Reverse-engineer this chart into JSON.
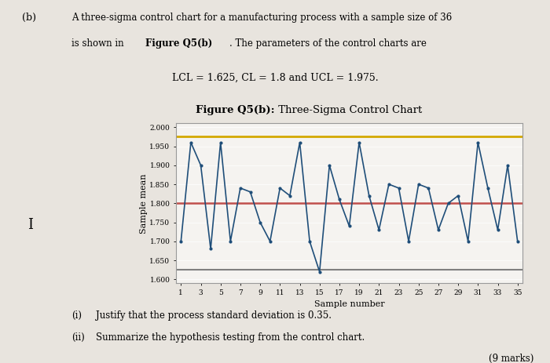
{
  "title": "Figure Q5(b): Three-Sigma Control Chart",
  "xlabel": "Sample number",
  "ylabel": "Sample mean",
  "UCL": 1.975,
  "CL": 1.8,
  "LCL": 1.625,
  "ylim_bottom": 1.59,
  "ylim_top": 2.01,
  "yticks": [
    1.6,
    1.65,
    1.7,
    1.75,
    1.8,
    1.85,
    1.9,
    1.95,
    2.0
  ],
  "xticks": [
    1,
    3,
    5,
    7,
    9,
    11,
    13,
    15,
    17,
    19,
    21,
    23,
    25,
    27,
    29,
    31,
    33,
    35
  ],
  "sample_values": [
    1.7,
    1.96,
    1.9,
    1.68,
    1.96,
    1.7,
    1.84,
    1.83,
    1.75,
    1.7,
    1.84,
    1.82,
    1.96,
    1.7,
    1.62,
    1.9,
    1.81,
    1.74,
    1.96,
    1.82,
    1.73,
    1.85,
    1.84,
    1.7,
    1.85,
    1.84,
    1.73,
    1.8,
    1.82,
    1.7,
    1.96,
    1.84,
    1.73,
    1.9,
    1.7
  ],
  "line_color": "#1f4e79",
  "UCL_color": "#d4a800",
  "LCL_color": "#808080",
  "CL_color": "#c0504d",
  "chart_bg": "#f0eeeb",
  "page_bg": "#e8e4de",
  "header_line1": "A three-sigma control chart for a manufacturing process with a sample size of 36",
  "header_line2_plain": "is shown in ",
  "header_line2_bold": "Figure Q5(b)",
  "header_line2_end": ". The parameters of the control charts are",
  "params_text": "LCL = 1.625, CL = 1.8 and UCL = 1.975.",
  "figure_label_bold": "Figure Q5(b):",
  "figure_label_plain": " Three-Sigma Control Chart",
  "bottom_i": "(i)",
  "bottom_i_text": "Justify that the process standard deviation is 0.35.",
  "bottom_ii": "(ii)",
  "bottom_ii_text": "Summarize the hypothesis testing from the control chart.",
  "marks_text": "(9 marks)"
}
